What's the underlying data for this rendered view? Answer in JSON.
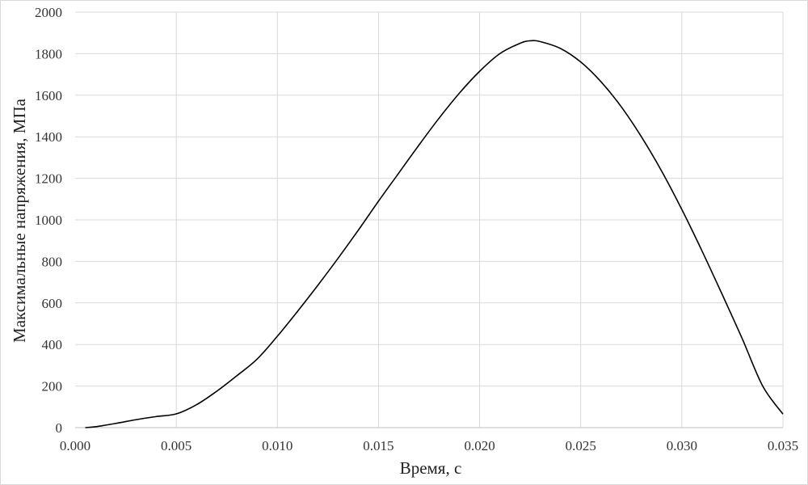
{
  "chart_data": {
    "type": "line",
    "title": "",
    "xlabel": "Время, с",
    "ylabel": "Максимальные напряжения, МПа",
    "xlim": [
      0,
      0.035
    ],
    "ylim": [
      0,
      2000
    ],
    "x_ticks": [
      "0.000",
      "0.005",
      "0.010",
      "0.015",
      "0.020",
      "0.025",
      "0.030",
      "0.035"
    ],
    "y_ticks": [
      "0",
      "200",
      "400",
      "600",
      "800",
      "1000",
      "1200",
      "1400",
      "1600",
      "1800",
      "2000"
    ],
    "grid": true,
    "legend": "none",
    "line_color": "#000000",
    "grid_color": "#d9d9d9",
    "series": [
      {
        "x": [
          0.0005,
          0.001,
          0.002,
          0.003,
          0.004,
          0.005,
          0.006,
          0.007,
          0.008,
          0.009,
          0.01,
          0.011,
          0.012,
          0.013,
          0.014,
          0.015,
          0.016,
          0.017,
          0.018,
          0.019,
          0.02,
          0.021,
          0.022,
          0.0225,
          0.023,
          0.024,
          0.025,
          0.026,
          0.027,
          0.028,
          0.029,
          0.03,
          0.031,
          0.032,
          0.033,
          0.034,
          0.035
        ],
        "values": [
          0,
          4,
          20,
          38,
          53,
          66,
          110,
          175,
          250,
          330,
          440,
          560,
          685,
          815,
          950,
          1090,
          1225,
          1360,
          1490,
          1610,
          1715,
          1800,
          1850,
          1862,
          1858,
          1825,
          1760,
          1665,
          1545,
          1400,
          1235,
          1050,
          850,
          640,
          425,
          200,
          65
        ]
      }
    ]
  }
}
